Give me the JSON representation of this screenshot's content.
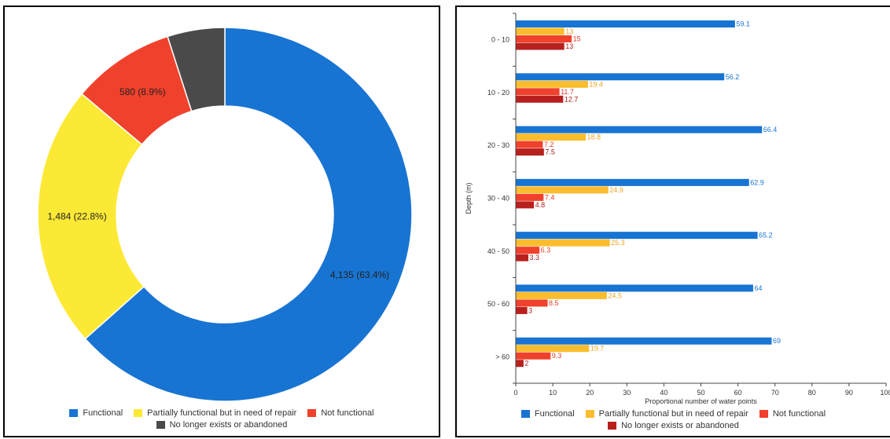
{
  "chart_data": [
    {
      "type": "pie",
      "donut": true,
      "slices": [
        {
          "name": "Functional",
          "value": 4135,
          "label": "4,135 (63.4%)"
        },
        {
          "name": "Partially functional but in need of repair",
          "value": 1484,
          "label": "1,484 (22.8%)"
        },
        {
          "name": "Not functional",
          "value": 580,
          "label": "580 (8.9%)"
        },
        {
          "name": "No longer exists or abandoned",
          "value": 323,
          "label": ""
        }
      ],
      "colors": [
        "#1874d2",
        "#fce935",
        "#f0412c",
        "#4a4a4a"
      ],
      "legend": [
        "Functional",
        "Partially functional but in need of repair",
        "Not functional",
        "No longer exists or abandoned"
      ],
      "legend_position": "bottom"
    },
    {
      "type": "bar",
      "orientation": "horizontal",
      "categories": [
        "0 - 10",
        "10 - 20",
        "20 - 30",
        "30 - 40",
        "40 - 50",
        "50 - 60",
        "> 60"
      ],
      "series": [
        {
          "name": "Functional",
          "values": [
            59.1,
            56.2,
            66.4,
            62.9,
            65.2,
            64,
            69
          ]
        },
        {
          "name": "Partially functional but in need of repair",
          "values": [
            13,
            19.4,
            18.8,
            24.9,
            25.3,
            24.5,
            19.7
          ]
        },
        {
          "name": "Not functional",
          "values": [
            15,
            11.7,
            7.2,
            7.4,
            6.3,
            8.5,
            9.3
          ]
        },
        {
          "name": "No longer exists or abandoned",
          "values": [
            13,
            12.7,
            7.5,
            4.8,
            3.3,
            3,
            2
          ]
        }
      ],
      "colors": [
        "#1874d2",
        "#fbbd2e",
        "#f0412c",
        "#b8201e"
      ],
      "label_colors": [
        "#1874d2",
        "#e7a51e",
        "#e33a26",
        "#a81c1a"
      ],
      "xlabel": "Proportional number of water points",
      "ylabel": "Depth (m)",
      "xlim": [
        0,
        100
      ],
      "xticks": [
        "0",
        "10",
        "20",
        "30",
        "40",
        "50",
        "60",
        "70",
        "80",
        "90",
        "100"
      ],
      "grid": false,
      "legend_position": "bottom"
    }
  ]
}
